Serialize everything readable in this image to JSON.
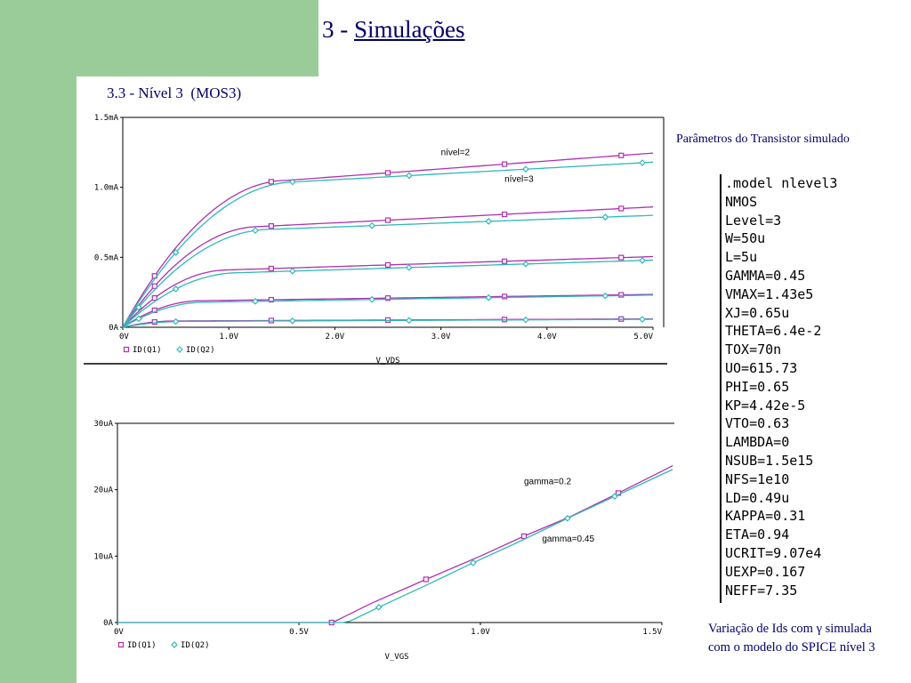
{
  "slide": {
    "title_prefix": "3 - ",
    "title_main": "Simulações",
    "subtitle": "3.3 - Nível 3  (MOS3)",
    "params_caption": "Parâmetros do Transistor simulado",
    "bottom_caption_line1": "Variação de Ids com γ simulada",
    "bottom_caption_line2": "com o modelo do SPICE nível 3"
  },
  "model_card": [
    ".model nlevel3",
    "NMOS",
    "Level=3",
    "W=50u",
    "L=5u",
    "GAMMA=0.45",
    "VMAX=1.43e5",
    "XJ=0.65u",
    "THETA=6.4e-2",
    "TOX=70n",
    "UO=615.73",
    "PHI=0.65",
    "KP=4.42e-5",
    "VTO=0.63",
    "LAMBDA=0",
    "NSUB=1.5e15",
    "NFS=1e10",
    "LD=0.49u",
    "KAPPA=0.31",
    "ETA=0.94",
    "UCRIT=9.07e4",
    "UEXP=0.167",
    "NEFF=7.35"
  ],
  "colors": {
    "q1": "#b030b0",
    "q2": "#30b8b8",
    "axis": "#000000",
    "text": "#000066",
    "green": "#99cc99"
  },
  "chart_data": [
    {
      "type": "line",
      "xlabel": "V_VDS",
      "ylabel": "",
      "xlim": [
        0,
        5.0
      ],
      "ylim": [
        0,
        1.5
      ],
      "x_ticks": [
        "0V",
        "1.0V",
        "2.0V",
        "3.0V",
        "4.0V",
        "5.0V"
      ],
      "y_ticks": [
        "0A",
        "0.5mA",
        "1.0mA",
        "1.5mA"
      ],
      "legend": [
        "ID(Q1)",
        "ID(Q2)"
      ],
      "legend_position": "bottom-left",
      "annotations": [
        {
          "text": "nível=2",
          "x": 3.0,
          "y": 1.23
        },
        {
          "text": "nível=3",
          "x": 3.6,
          "y": 1.04
        }
      ],
      "series": [
        {
          "name": "ID(Q1)",
          "vgs_step": 1,
          "vsat": 0.5,
          "isat": 0.045,
          "i_end": 0.06
        },
        {
          "name": "ID(Q2)",
          "vgs_step": 1,
          "vsat": 0.6,
          "isat": 0.042,
          "i_end": 0.057
        },
        {
          "name": "ID(Q1)",
          "vgs_step": 2,
          "vsat": 0.75,
          "isat": 0.19,
          "i_end": 0.235
        },
        {
          "name": "ID(Q2)",
          "vgs_step": 2,
          "vsat": 0.8,
          "isat": 0.18,
          "i_end": 0.23
        },
        {
          "name": "ID(Q1)",
          "vgs_step": 3,
          "vsat": 1.0,
          "isat": 0.41,
          "i_end": 0.505
        },
        {
          "name": "ID(Q2)",
          "vgs_step": 3,
          "vsat": 1.1,
          "isat": 0.39,
          "i_end": 0.48
        },
        {
          "name": "ID(Q1)",
          "vgs_step": 4,
          "vsat": 1.3,
          "isat": 0.72,
          "i_end": 0.86
        },
        {
          "name": "ID(Q2)",
          "vgs_step": 4,
          "vsat": 1.4,
          "isat": 0.7,
          "i_end": 0.8
        },
        {
          "name": "ID(Q1)",
          "vgs_step": 5,
          "vsat": 1.55,
          "isat": 1.05,
          "i_end": 1.245
        },
        {
          "name": "ID(Q2)",
          "vgs_step": 5,
          "vsat": 1.65,
          "isat": 1.04,
          "i_end": 1.18
        }
      ]
    },
    {
      "type": "line",
      "xlabel": "V_VGS",
      "ylabel": "",
      "xlim": [
        0,
        1.5
      ],
      "ylim": [
        0,
        30
      ],
      "x_ticks": [
        "0V",
        "0.5V",
        "1.0V",
        "1.5V"
      ],
      "y_ticks": [
        "0A",
        "10uA",
        "20uA",
        "30uA"
      ],
      "legend": [
        "ID(Q1)",
        "ID(Q2)"
      ],
      "legend_position": "bottom-left",
      "annotations": [
        {
          "text": "gamma=0.2",
          "x": 1.12,
          "y": 20.8
        },
        {
          "text": "gamma=0.45",
          "x": 1.17,
          "y": 12.2
        }
      ],
      "series": [
        {
          "name": "ID(Q1)",
          "x": [
            0,
            0.59,
            0.6,
            0.7,
            0.85,
            1.0,
            1.12,
            1.25,
            1.38,
            1.5
          ],
          "y": [
            0,
            0,
            0.2,
            2.9,
            6.5,
            10.0,
            13.0,
            16.0,
            19.5,
            22.8
          ]
        },
        {
          "name": "ID(Q2)",
          "x": [
            0,
            0.62,
            0.64,
            0.72,
            0.85,
            0.98,
            1.1,
            1.24,
            1.37,
            1.5
          ],
          "y": [
            0,
            0,
            0.2,
            2.3,
            5.6,
            9.0,
            12.0,
            15.7,
            19.0,
            22.3
          ]
        }
      ]
    }
  ]
}
